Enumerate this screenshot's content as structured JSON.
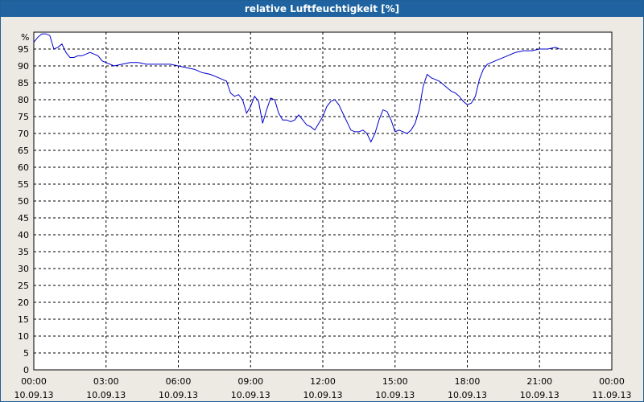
{
  "header": {
    "title": "relative Luftfeuchtigkeit [%]"
  },
  "colors": {
    "title_bar": "#1f64a0",
    "plot_bg": "#ffffff",
    "frame_bg": "#eceae2",
    "series_line": "#0000cc",
    "grid": "#000000"
  },
  "chart_data": {
    "type": "line",
    "title": "relative Luftfeuchtigkeit [%]",
    "ylabel": "%",
    "xlabel": "",
    "ylim": [
      0,
      100
    ],
    "yticks": [
      0,
      5,
      10,
      15,
      20,
      25,
      30,
      35,
      40,
      45,
      50,
      55,
      60,
      65,
      70,
      75,
      80,
      85,
      90,
      95
    ],
    "xlim": [
      "10.09.13 00:00",
      "11.09.13 00:00"
    ],
    "xticks": [
      {
        "time": "00:00",
        "date": "10.09.13"
      },
      {
        "time": "03:00",
        "date": "10.09.13"
      },
      {
        "time": "06:00",
        "date": "10.09.13"
      },
      {
        "time": "09:00",
        "date": "10.09.13"
      },
      {
        "time": "12:00",
        "date": "10.09.13"
      },
      {
        "time": "15:00",
        "date": "10.09.13"
      },
      {
        "time": "18:00",
        "date": "10.09.13"
      },
      {
        "time": "21:00",
        "date": "10.09.13"
      },
      {
        "time": "00:00",
        "date": "11.09.13"
      }
    ],
    "grid": true,
    "grid_style": "dashed",
    "series": [
      {
        "values": [
          [
            "00:00",
            97
          ],
          [
            "00:10",
            98.5
          ],
          [
            "00:20",
            99.5
          ],
          [
            "00:30",
            99.5
          ],
          [
            "00:40",
            99
          ],
          [
            "00:50",
            95
          ],
          [
            "01:00",
            95.5
          ],
          [
            "01:10",
            96.5
          ],
          [
            "01:20",
            94
          ],
          [
            "01:30",
            92.5
          ],
          [
            "01:40",
            92.5
          ],
          [
            "01:50",
            93
          ],
          [
            "02:00",
            93
          ],
          [
            "02:10",
            93.5
          ],
          [
            "02:20",
            94
          ],
          [
            "02:30",
            93.5
          ],
          [
            "02:40",
            93
          ],
          [
            "02:50",
            91.5
          ],
          [
            "03:00",
            91
          ],
          [
            "03:20",
            90
          ],
          [
            "03:40",
            90.5
          ],
          [
            "04:00",
            91
          ],
          [
            "04:20",
            91
          ],
          [
            "04:40",
            90.5
          ],
          [
            "05:00",
            90.5
          ],
          [
            "05:20",
            90.5
          ],
          [
            "05:40",
            90.5
          ],
          [
            "06:00",
            90
          ],
          [
            "06:20",
            89.5
          ],
          [
            "06:40",
            89
          ],
          [
            "07:00",
            88
          ],
          [
            "07:20",
            87.5
          ],
          [
            "07:40",
            86.5
          ],
          [
            "08:00",
            85.5
          ],
          [
            "08:10",
            82
          ],
          [
            "08:20",
            81
          ],
          [
            "08:30",
            81.5
          ],
          [
            "08:40",
            80
          ],
          [
            "08:50",
            76
          ],
          [
            "09:00",
            78
          ],
          [
            "09:10",
            81
          ],
          [
            "09:20",
            79.5
          ],
          [
            "09:30",
            73
          ],
          [
            "09:40",
            77
          ],
          [
            "09:50",
            80.5
          ],
          [
            "10:00",
            80
          ],
          [
            "10:10",
            76
          ],
          [
            "10:20",
            74
          ],
          [
            "10:30",
            74
          ],
          [
            "10:40",
            73.5
          ],
          [
            "10:50",
            74
          ],
          [
            "11:00",
            75.5
          ],
          [
            "11:10",
            74
          ],
          [
            "11:20",
            72.5
          ],
          [
            "11:30",
            72
          ],
          [
            "11:40",
            71
          ],
          [
            "11:50",
            73
          ],
          [
            "12:00",
            75
          ],
          [
            "12:10",
            78
          ],
          [
            "12:20",
            79.5
          ],
          [
            "12:30",
            80
          ],
          [
            "12:40",
            78.5
          ],
          [
            "12:50",
            76
          ],
          [
            "13:00",
            73.5
          ],
          [
            "13:10",
            71
          ],
          [
            "13:20",
            70.5
          ],
          [
            "13:30",
            70.5
          ],
          [
            "13:40",
            71
          ],
          [
            "13:50",
            70
          ],
          [
            "14:00",
            67.5
          ],
          [
            "14:10",
            70
          ],
          [
            "14:20",
            74
          ],
          [
            "14:30",
            77
          ],
          [
            "14:40",
            76.5
          ],
          [
            "14:50",
            74
          ],
          [
            "15:00",
            70.5
          ],
          [
            "15:10",
            71
          ],
          [
            "15:20",
            70.5
          ],
          [
            "15:30",
            70
          ],
          [
            "15:40",
            71
          ],
          [
            "15:50",
            73
          ],
          [
            "16:00",
            77
          ],
          [
            "16:10",
            84
          ],
          [
            "16:20",
            87.5
          ],
          [
            "16:30",
            86.5
          ],
          [
            "16:40",
            86
          ],
          [
            "16:50",
            85.5
          ],
          [
            "17:00",
            84.5
          ],
          [
            "17:10",
            83.5
          ],
          [
            "17:20",
            82.5
          ],
          [
            "17:30",
            82
          ],
          [
            "17:40",
            81
          ],
          [
            "17:50",
            79.5
          ],
          [
            "18:00",
            78.5
          ],
          [
            "18:10",
            79
          ],
          [
            "18:20",
            81
          ],
          [
            "18:30",
            86
          ],
          [
            "18:40",
            89
          ],
          [
            "18:50",
            90.5
          ],
          [
            "19:00",
            91
          ],
          [
            "19:20",
            92
          ],
          [
            "19:40",
            93
          ],
          [
            "20:00",
            94
          ],
          [
            "20:20",
            94.5
          ],
          [
            "20:40",
            94.5
          ],
          [
            "21:00",
            95
          ],
          [
            "21:20",
            95
          ],
          [
            "21:40",
            95.5
          ],
          [
            "21:50",
            95
          ]
        ]
      }
    ]
  }
}
